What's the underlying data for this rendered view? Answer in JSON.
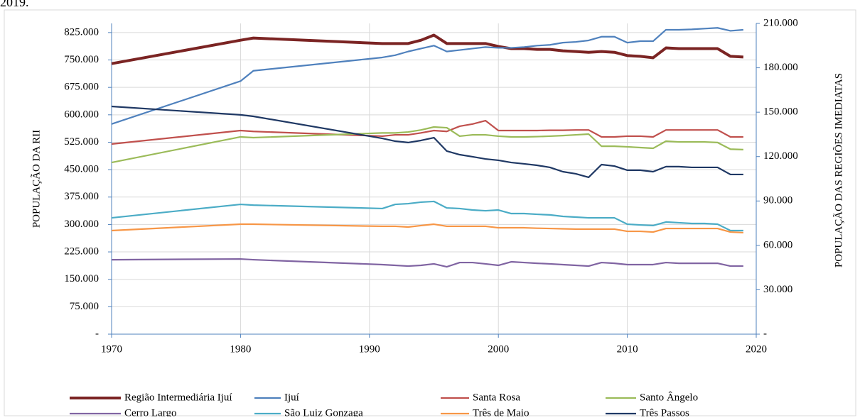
{
  "caption": "2019.",
  "chart_data": {
    "type": "line",
    "ylabel": "POPULAÇÃO DA RII",
    "y2label": "POPULAÇÃO DAS REGIÕES IMEDIATAS",
    "xlim": [
      1970,
      2020
    ],
    "xticks": [
      1970,
      1980,
      1990,
      2000,
      2010,
      2020
    ],
    "ylim": [
      0,
      850000
    ],
    "yticks": [
      {
        "value": 0,
        "label": "-"
      },
      {
        "value": 75000,
        "label": "75.000"
      },
      {
        "value": 150000,
        "label": "150.000"
      },
      {
        "value": 225000,
        "label": "225.000"
      },
      {
        "value": 300000,
        "label": "300.000"
      },
      {
        "value": 375000,
        "label": "375.000"
      },
      {
        "value": 450000,
        "label": "450.000"
      },
      {
        "value": 525000,
        "label": "525.000"
      },
      {
        "value": 600000,
        "label": "600.000"
      },
      {
        "value": 675000,
        "label": "675.000"
      },
      {
        "value": 750000,
        "label": "750.000"
      },
      {
        "value": 825000,
        "label": "825.000"
      }
    ],
    "y2lim": [
      0,
      210000
    ],
    "y2ticks": [
      {
        "value": 0,
        "label": "-"
      },
      {
        "value": 30000,
        "label": "30.000"
      },
      {
        "value": 60000,
        "label": "60.000"
      },
      {
        "value": 90000,
        "label": "90.000"
      },
      {
        "value": 120000,
        "label": "120.000"
      },
      {
        "value": 150000,
        "label": "150.000"
      },
      {
        "value": 180000,
        "label": "180.000"
      },
      {
        "value": 210000,
        "label": "210.000"
      }
    ],
    "grid": true,
    "x": [
      1970,
      1980,
      1981,
      1991,
      1992,
      1993,
      1994,
      1995,
      1996,
      1997,
      1998,
      1999,
      2000,
      2001,
      2002,
      2003,
      2004,
      2005,
      2006,
      2007,
      2008,
      2009,
      2010,
      2011,
      2012,
      2013,
      2014,
      2015,
      2016,
      2017,
      2018,
      2019
    ],
    "series": [
      {
        "name": "Região Intermediária Ijuí",
        "color": "#7b2423",
        "values": [
          740000,
          804000,
          810000,
          795000,
          795000,
          795000,
          804000,
          818000,
          795000,
          795000,
          795000,
          795000,
          787000,
          781000,
          781000,
          779000,
          779000,
          775000,
          773000,
          771000,
          773000,
          771000,
          762000,
          760000,
          756000,
          783000,
          781000,
          781000,
          781000,
          781000,
          760000,
          758000
        ]
      },
      {
        "name": "Ijuí",
        "color": "#4f81bd",
        "axis": "y2",
        "values": [
          142000,
          171000,
          178000,
          187000,
          188500,
          191000,
          193000,
          195000,
          191000,
          192000,
          193000,
          194000,
          193500,
          193500,
          194000,
          195000,
          195500,
          197000,
          197500,
          198500,
          201000,
          201000,
          197000,
          198000,
          198000,
          205700,
          205700,
          206000,
          206500,
          207000,
          205000,
          205700
        ]
      },
      {
        "name": "Santa Rosa",
        "color": "#c0504d",
        "axis": "y2",
        "values": [
          128500,
          137600,
          137000,
          133800,
          134700,
          134700,
          136000,
          137600,
          137000,
          140500,
          142000,
          144300,
          137600,
          137600,
          137600,
          137600,
          137800,
          137800,
          138000,
          138000,
          133300,
          133300,
          133800,
          133800,
          133300,
          138000,
          138000,
          138000,
          138000,
          138000,
          133300,
          133300
        ]
      },
      {
        "name": "Santo Ângelo",
        "color": "#9bbb59",
        "axis": "y2",
        "values": [
          116000,
          133300,
          132800,
          136000,
          136000,
          136600,
          138000,
          140000,
          139500,
          133800,
          134700,
          134700,
          133800,
          133300,
          133300,
          133500,
          133800,
          134200,
          134700,
          135200,
          127000,
          127000,
          126600,
          126100,
          125600,
          130400,
          129900,
          129900,
          129900,
          129500,
          125000,
          124700
        ]
      },
      {
        "name": "Cerro Largo",
        "color": "#8064a2",
        "axis": "y2",
        "values": [
          50300,
          50800,
          50300,
          47000,
          46500,
          46000,
          46500,
          47500,
          45500,
          48400,
          48400,
          47500,
          46500,
          48900,
          48400,
          47900,
          47500,
          47000,
          46500,
          46000,
          48400,
          47900,
          47000,
          47000,
          47000,
          48400,
          47900,
          47900,
          47900,
          47900,
          46000,
          46000
        ]
      },
      {
        "name": "São Luiz Gonzaga",
        "color": "#4bacc6",
        "axis": "y2",
        "values": [
          78600,
          87700,
          87200,
          84900,
          87700,
          88200,
          89200,
          89700,
          85300,
          84900,
          83900,
          83400,
          83900,
          81500,
          81500,
          81000,
          80600,
          79600,
          79100,
          78600,
          78600,
          78600,
          74300,
          73800,
          73400,
          75800,
          75300,
          74800,
          74800,
          74300,
          70000,
          70000
        ]
      },
      {
        "name": "Três de Maio",
        "color": "#f79646",
        "axis": "y2",
        "values": [
          70000,
          74300,
          74300,
          72900,
          72900,
          72400,
          73400,
          74300,
          72900,
          72900,
          72900,
          72900,
          71900,
          71900,
          71900,
          71600,
          71400,
          71200,
          71000,
          71000,
          71000,
          71000,
          69500,
          69500,
          69000,
          71400,
          71400,
          71400,
          71400,
          71400,
          69000,
          68600
        ]
      },
      {
        "name": "Três Passos",
        "color": "#1f3864",
        "axis": "y2",
        "values": [
          153900,
          148200,
          147200,
          132300,
          130400,
          129500,
          130900,
          132800,
          123700,
          121300,
          119900,
          118400,
          117500,
          116000,
          115100,
          114100,
          112700,
          109800,
          108400,
          106000,
          114600,
          113600,
          110800,
          110800,
          109800,
          113200,
          113200,
          112700,
          112700,
          112700,
          107900,
          107900
        ]
      }
    ]
  }
}
